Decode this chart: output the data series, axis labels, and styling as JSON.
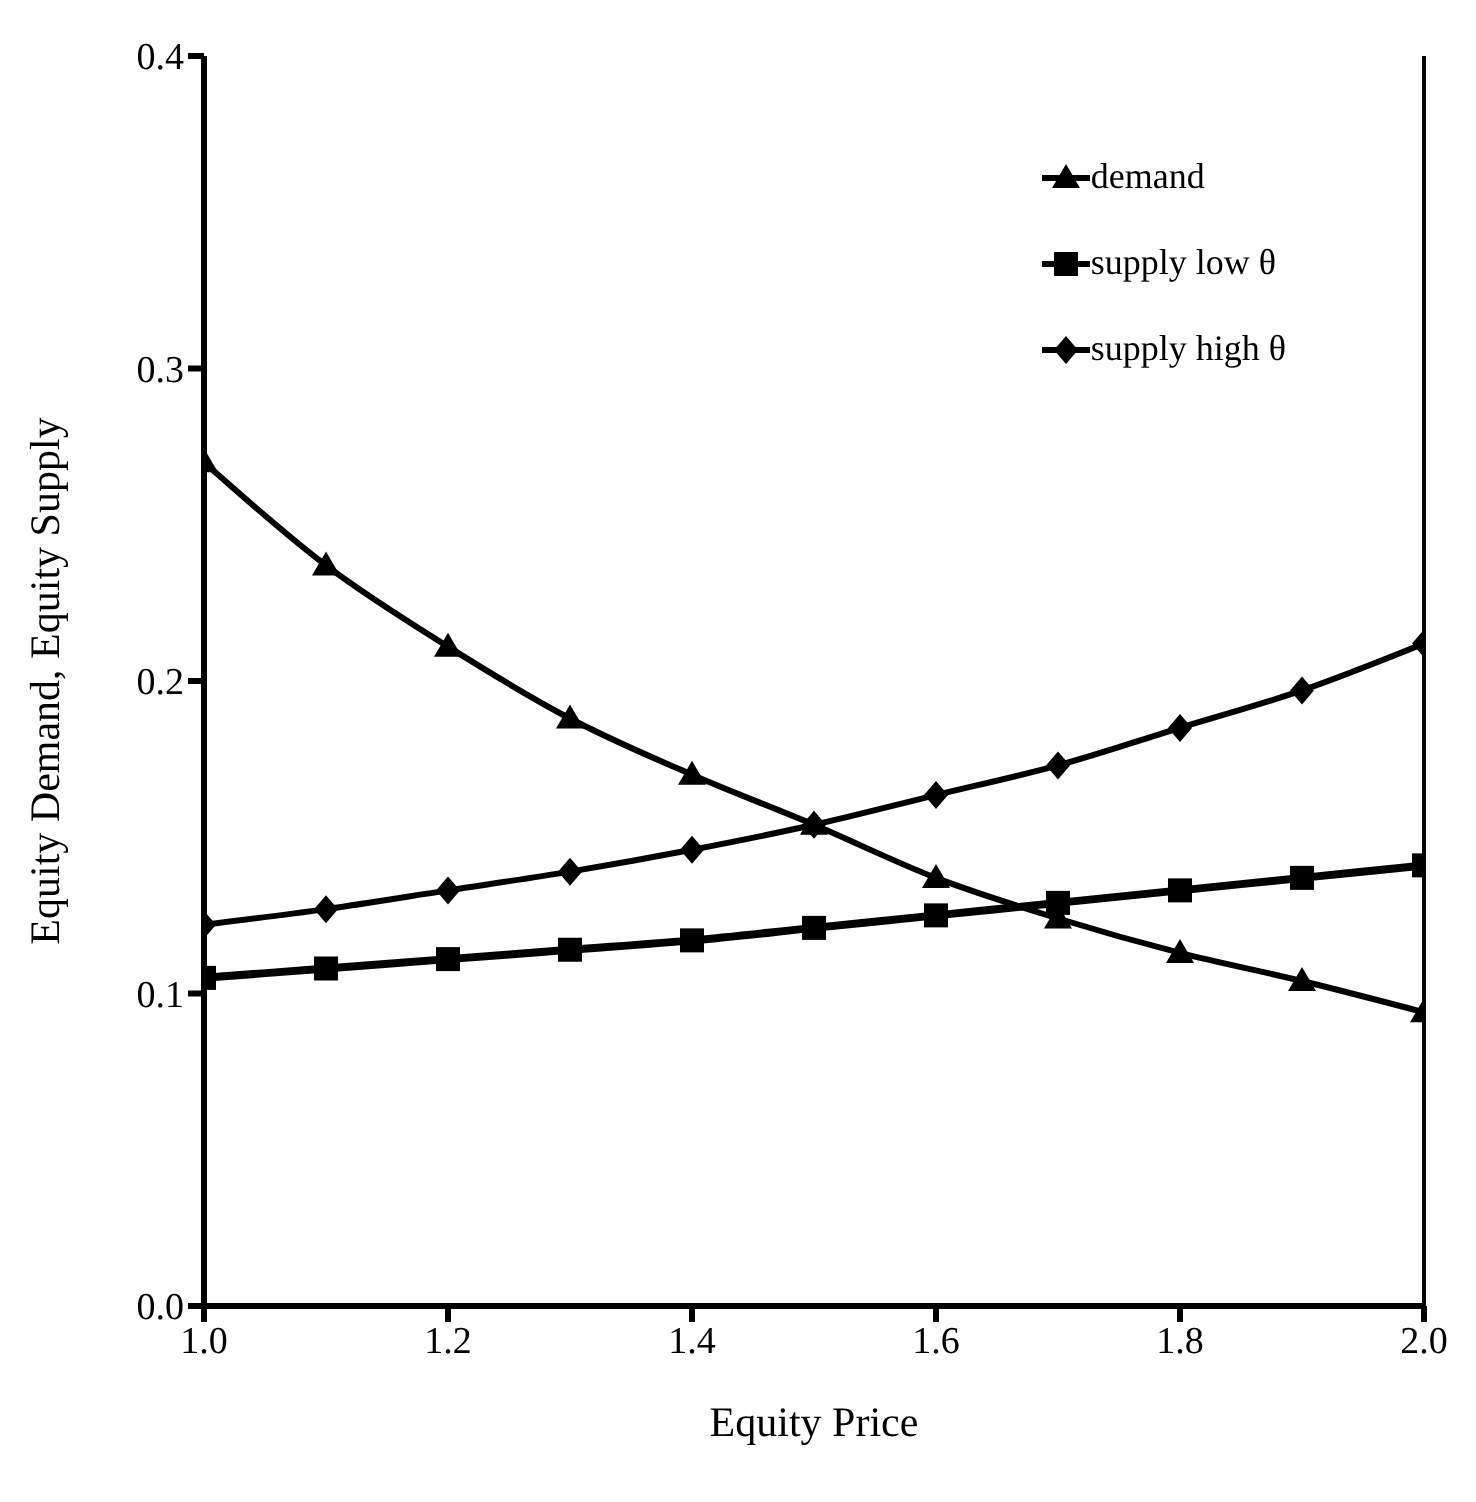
{
  "chart_data": {
    "type": "line",
    "xlabel": "Equity Price",
    "ylabel": "Equity Demand, Equity Supply",
    "x": [
      1.0,
      1.1,
      1.2,
      1.3,
      1.4,
      1.5,
      1.6,
      1.7,
      1.8,
      1.9,
      2.0
    ],
    "series": [
      {
        "name": "demand",
        "color": "#000000",
        "marker": "triangle",
        "values": [
          0.27,
          0.237,
          0.211,
          0.188,
          0.17,
          0.154,
          0.137,
          0.124,
          0.113,
          0.104,
          0.094
        ]
      },
      {
        "name": "supply low θ",
        "color": "#000000",
        "marker": "square",
        "values": [
          0.105,
          0.108,
          0.111,
          0.114,
          0.117,
          0.121,
          0.125,
          0.129,
          0.133,
          0.137,
          0.141
        ]
      },
      {
        "name": "supply high θ",
        "color": "#000000",
        "marker": "diamond",
        "values": [
          0.122,
          0.127,
          0.133,
          0.139,
          0.146,
          0.154,
          0.1635,
          0.173,
          0.185,
          0.197,
          0.212
        ]
      }
    ],
    "xlim": [
      1.0,
      2.0
    ],
    "ylim": [
      0.0,
      0.4
    ],
    "xticks": [
      {
        "value": 1.0,
        "label": "1.0"
      },
      {
        "value": 1.2,
        "label": "1.2"
      },
      {
        "value": 1.4,
        "label": "1.4"
      },
      {
        "value": 1.6,
        "label": "1.6"
      },
      {
        "value": 1.8,
        "label": "1.8"
      },
      {
        "value": 2.0,
        "label": "2.0"
      }
    ],
    "yticks": [
      {
        "value": 0.0,
        "label": "0.0"
      },
      {
        "value": 0.1,
        "label": "0.1"
      },
      {
        "value": 0.2,
        "label": "0.2"
      },
      {
        "value": 0.3,
        "label": "0.3"
      },
      {
        "value": 0.4,
        "label": "0.4"
      }
    ],
    "legend": "top right",
    "line_style": "solid"
  }
}
